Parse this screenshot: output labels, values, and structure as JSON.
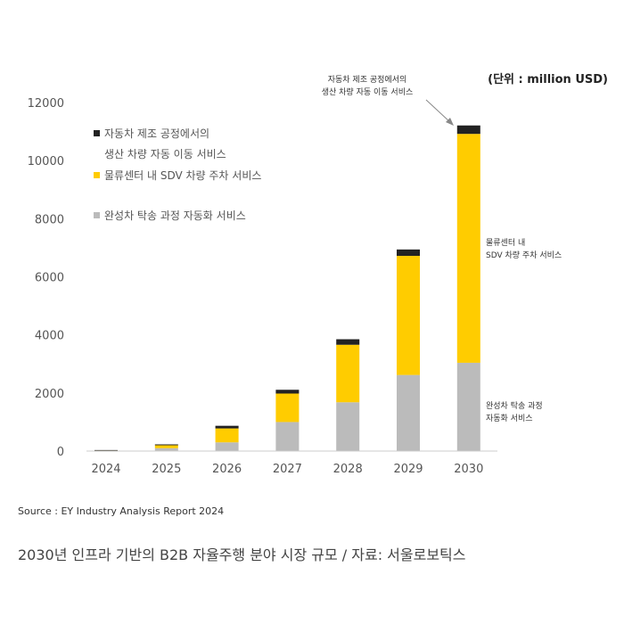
{
  "chart_data": {
    "type": "bar",
    "stacked": true,
    "unit_label": "(단위 : million USD)",
    "categories": [
      "2024",
      "2025",
      "2026",
      "2027",
      "2028",
      "2029",
      "2030"
    ],
    "ylim": [
      0,
      12000
    ],
    "yticks": [
      0,
      2000,
      4000,
      6000,
      8000,
      10000,
      12000
    ],
    "ytick_labels": [
      "0",
      "2000",
      "4000",
      "6000",
      "8000",
      "10000",
      "12000"
    ],
    "grid": false,
    "legend_placement": "top-left",
    "series": [
      {
        "name": "완성차 탁송 과정 자동화 서비스",
        "color": "#bbbbbb",
        "values": [
          20,
          100,
          300,
          1000,
          1680,
          2620,
          3040
        ]
      },
      {
        "name": "물류센터 내 SDV 차량 주차 서비스",
        "color": "#ffcc00",
        "values": [
          10,
          100,
          480,
          980,
          1980,
          4100,
          7880
        ]
      },
      {
        "name_lines": [
          "자동차 제조 공정에서의",
          "생산 차량 자동 이동 서비스"
        ],
        "color": "#222222",
        "values": [
          5,
          30,
          90,
          130,
          190,
          220,
          290
        ]
      }
    ],
    "annotations": [
      {
        "lines": [
          "자동차 제조 공정에서의",
          "생산 차량 자동 이동 서비스"
        ]
      },
      {
        "lines": [
          "물류센터 내",
          "SDV 차량 주차 서비스"
        ]
      },
      {
        "lines": [
          "완성차 탁송 과정",
          "자동화 서비스"
        ]
      }
    ]
  },
  "source": "Source : EY Industry Analysis Report 2024",
  "caption": "2030년 인프라 기반의 B2B 자율주행 분야 시장 규모 / 자료: 서울로보틱스"
}
